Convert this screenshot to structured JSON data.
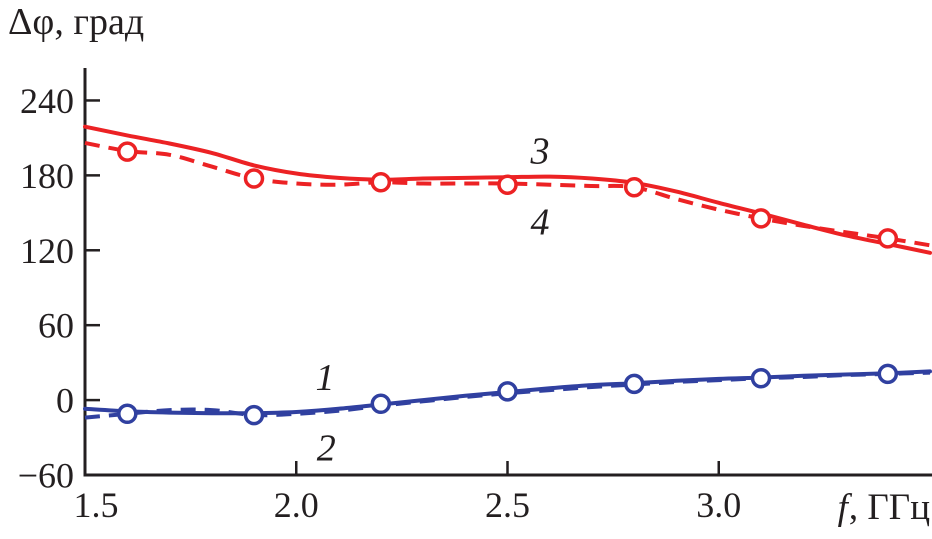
{
  "chart_data": {
    "type": "line",
    "title": "",
    "ylabel": "Δφ, град",
    "xlabel": "f, ГГц",
    "xlabel_parts": [
      "f",
      ", ГГц"
    ],
    "xlim": [
      1.5,
      3.5
    ],
    "ylim": [
      -60,
      266
    ],
    "grid": false,
    "legend_position": "none",
    "colors": {
      "axis": "#231f20",
      "red": "#ec2224",
      "blue": "#3040a0"
    },
    "x_ticks": [
      {
        "value": 1.5,
        "label": "1.5",
        "draw_tick": false
      },
      {
        "value": 2.0,
        "label": "2.0",
        "draw_tick": true
      },
      {
        "value": 2.5,
        "label": "2.5",
        "draw_tick": true
      },
      {
        "value": 3.0,
        "label": "3.0",
        "draw_tick": true
      }
    ],
    "y_ticks": [
      {
        "value": 240,
        "label": "240"
      },
      {
        "value": 180,
        "label": "180"
      },
      {
        "value": 120,
        "label": "120"
      },
      {
        "value": 60,
        "label": "60"
      },
      {
        "value": 0,
        "label": "0"
      },
      {
        "value": -60,
        "label": "−60"
      }
    ],
    "series": [
      {
        "name": "3",
        "color_key": "red",
        "style": "solid",
        "points": [
          [
            1.5,
            219
          ],
          [
            1.6,
            212
          ],
          [
            1.7,
            205.5
          ],
          [
            1.8,
            198
          ],
          [
            1.9,
            188
          ],
          [
            2.0,
            181.5
          ],
          [
            2.1,
            178
          ],
          [
            2.2,
            176.5
          ],
          [
            2.3,
            177.5
          ],
          [
            2.4,
            178
          ],
          [
            2.5,
            178.5
          ],
          [
            2.6,
            179
          ],
          [
            2.7,
            177.5
          ],
          [
            2.8,
            174
          ],
          [
            2.9,
            167
          ],
          [
            3.0,
            158
          ],
          [
            3.1,
            149.5
          ],
          [
            3.2,
            140.5
          ],
          [
            3.3,
            132
          ],
          [
            3.4,
            125
          ],
          [
            3.5,
            118
          ]
        ]
      },
      {
        "name": "4",
        "color_key": "red",
        "style": "dashed",
        "points": [
          [
            1.5,
            206
          ],
          [
            1.6,
            199.5
          ],
          [
            1.7,
            196.5
          ],
          [
            1.8,
            187
          ],
          [
            1.9,
            177.5
          ],
          [
            2.0,
            173.5
          ],
          [
            2.1,
            172.5
          ],
          [
            2.2,
            174.5
          ],
          [
            2.3,
            173.5
          ],
          [
            2.4,
            173.5
          ],
          [
            2.5,
            173.5
          ],
          [
            2.6,
            172.5
          ],
          [
            2.7,
            171.5
          ],
          [
            2.8,
            170.5
          ],
          [
            2.9,
            161
          ],
          [
            3.0,
            152.5
          ],
          [
            3.1,
            145.5
          ],
          [
            3.2,
            139.5
          ],
          [
            3.3,
            134.5
          ],
          [
            3.4,
            129.5
          ],
          [
            3.5,
            124
          ]
        ],
        "markers": [
          [
            1.6,
            199
          ],
          [
            1.9,
            177.5
          ],
          [
            2.2,
            174.5
          ],
          [
            2.5,
            172.5
          ],
          [
            2.8,
            170.5
          ],
          [
            3.1,
            145.5
          ],
          [
            3.4,
            129.5
          ]
        ]
      },
      {
        "name": "1",
        "color_key": "blue",
        "style": "solid",
        "points": [
          [
            1.5,
            -7
          ],
          [
            1.6,
            -9
          ],
          [
            1.7,
            -10
          ],
          [
            1.8,
            -10.5
          ],
          [
            1.9,
            -10.5
          ],
          [
            2.0,
            -9.5
          ],
          [
            2.1,
            -7
          ],
          [
            2.2,
            -3.5
          ],
          [
            2.3,
            0
          ],
          [
            2.4,
            3.5
          ],
          [
            2.5,
            6.5
          ],
          [
            2.6,
            9.5
          ],
          [
            2.7,
            12
          ],
          [
            2.8,
            13.5
          ],
          [
            2.9,
            15.5
          ],
          [
            3.0,
            17
          ],
          [
            3.1,
            18
          ],
          [
            3.2,
            19.5
          ],
          [
            3.3,
            20.5
          ],
          [
            3.4,
            21.5
          ],
          [
            3.5,
            23
          ]
        ]
      },
      {
        "name": "2",
        "color_key": "blue",
        "style": "dashed",
        "points": [
          [
            1.5,
            -14
          ],
          [
            1.6,
            -11
          ],
          [
            1.7,
            -8
          ],
          [
            1.8,
            -8
          ],
          [
            1.9,
            -12
          ],
          [
            2.0,
            -11
          ],
          [
            2.1,
            -8.5
          ],
          [
            2.2,
            -4.5
          ],
          [
            2.3,
            -1
          ],
          [
            2.4,
            2.5
          ],
          [
            2.5,
            5.5
          ],
          [
            2.6,
            8
          ],
          [
            2.7,
            10.5
          ],
          [
            2.8,
            12.5
          ],
          [
            2.9,
            14.5
          ],
          [
            3.0,
            16
          ],
          [
            3.1,
            17.5
          ],
          [
            3.2,
            18.5
          ],
          [
            3.3,
            20
          ],
          [
            3.4,
            21
          ],
          [
            3.5,
            22
          ]
        ],
        "markers": [
          [
            1.6,
            -11
          ],
          [
            1.9,
            -12
          ],
          [
            2.2,
            -3
          ],
          [
            2.5,
            7
          ],
          [
            2.8,
            13
          ],
          [
            3.1,
            17.5
          ],
          [
            3.4,
            21
          ]
        ]
      }
    ],
    "annotations": [
      {
        "text": "3",
        "x": 2.577,
        "y": 200
      },
      {
        "text": "4",
        "x": 2.577,
        "y": 143
      },
      {
        "text": "1",
        "x": 2.068,
        "y": 18.5
      },
      {
        "text": "2",
        "x": 2.071,
        "y": -38
      }
    ]
  }
}
